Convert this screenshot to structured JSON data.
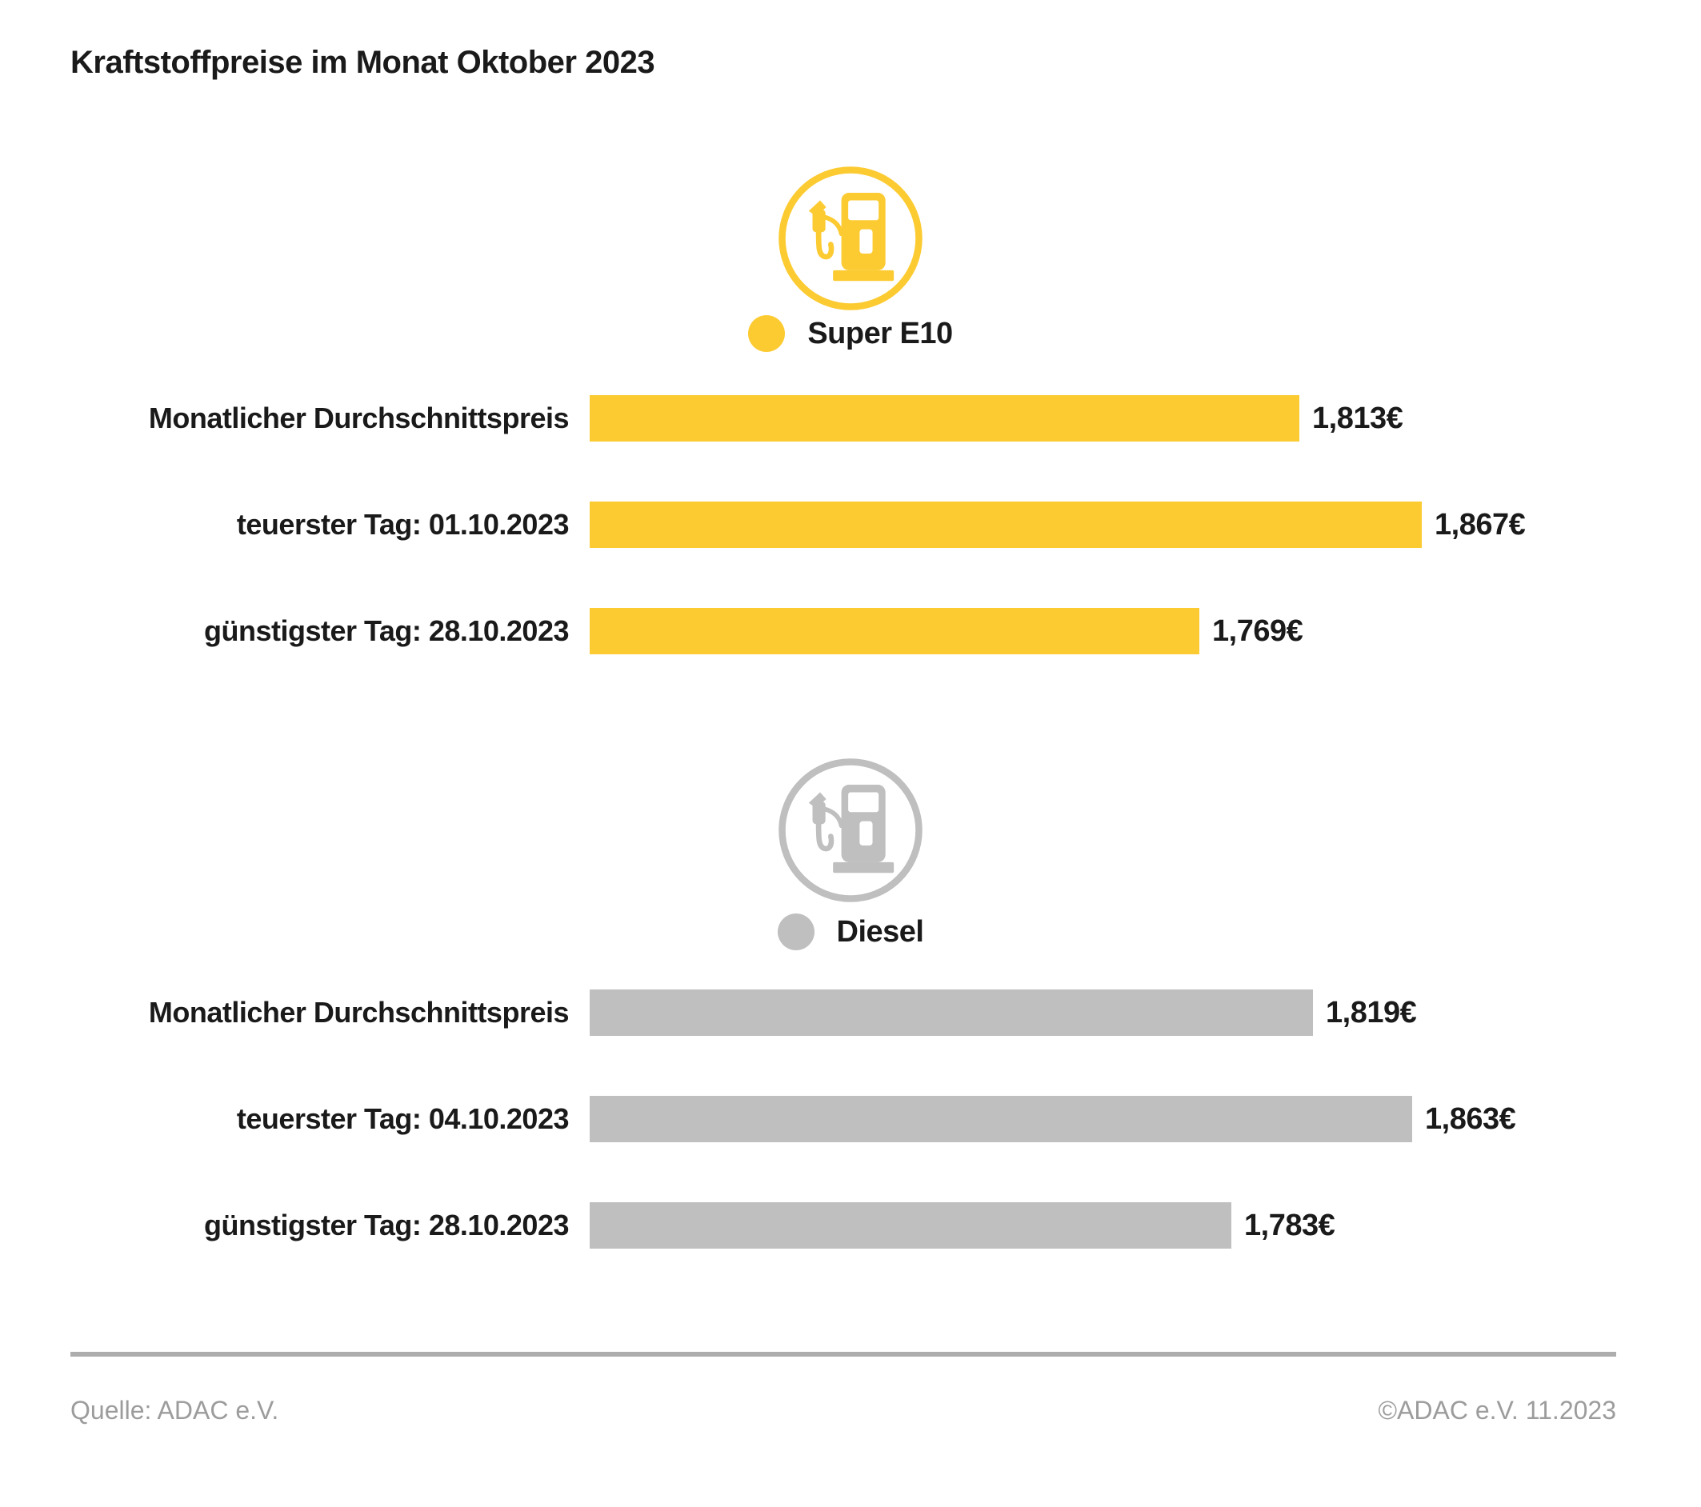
{
  "title": "Kraftstoffpreise im Monat Oktober 2023",
  "colors": {
    "super_e10_yellow": "#FCCB32",
    "diesel_gray": "#BFBFBF",
    "text_dark": "#1A1A1A",
    "footer_gray": "#9C9C9C",
    "divider_gray": "#ADADAD"
  },
  "chart_data": [
    {
      "type": "bar",
      "orientation": "horizontal",
      "title": "Super E10",
      "icon": "fuel-pump-icon",
      "color": "#FCCB32",
      "categories": [
        "Monatlicher Durchschnittspreis",
        "teuerster Tag: 01.10.2023",
        "günstigster Tag: 28.10.2023"
      ],
      "values": [
        1.813,
        1.867,
        1.769
      ],
      "value_labels": [
        "1,813€",
        "1,867€",
        "1,769€"
      ],
      "xlim": [
        1.5,
        1.9
      ],
      "grid": false,
      "legend_position": "top-center"
    },
    {
      "type": "bar",
      "orientation": "horizontal",
      "title": "Diesel",
      "icon": "fuel-pump-icon",
      "color": "#BFBFBF",
      "categories": [
        "Monatlicher Durchschnittspreis",
        "teuerster Tag: 04.10.2023",
        "günstigster Tag: 28.10.2023"
      ],
      "values": [
        1.819,
        1.863,
        1.783
      ],
      "value_labels": [
        "1,819€",
        "1,863€",
        "1,783€"
      ],
      "xlim": [
        1.5,
        1.9
      ],
      "grid": false,
      "legend_position": "top-center"
    }
  ],
  "footer": {
    "source": "Quelle: ADAC e.V.",
    "copyright": "©ADAC e.V. 11.2023"
  }
}
